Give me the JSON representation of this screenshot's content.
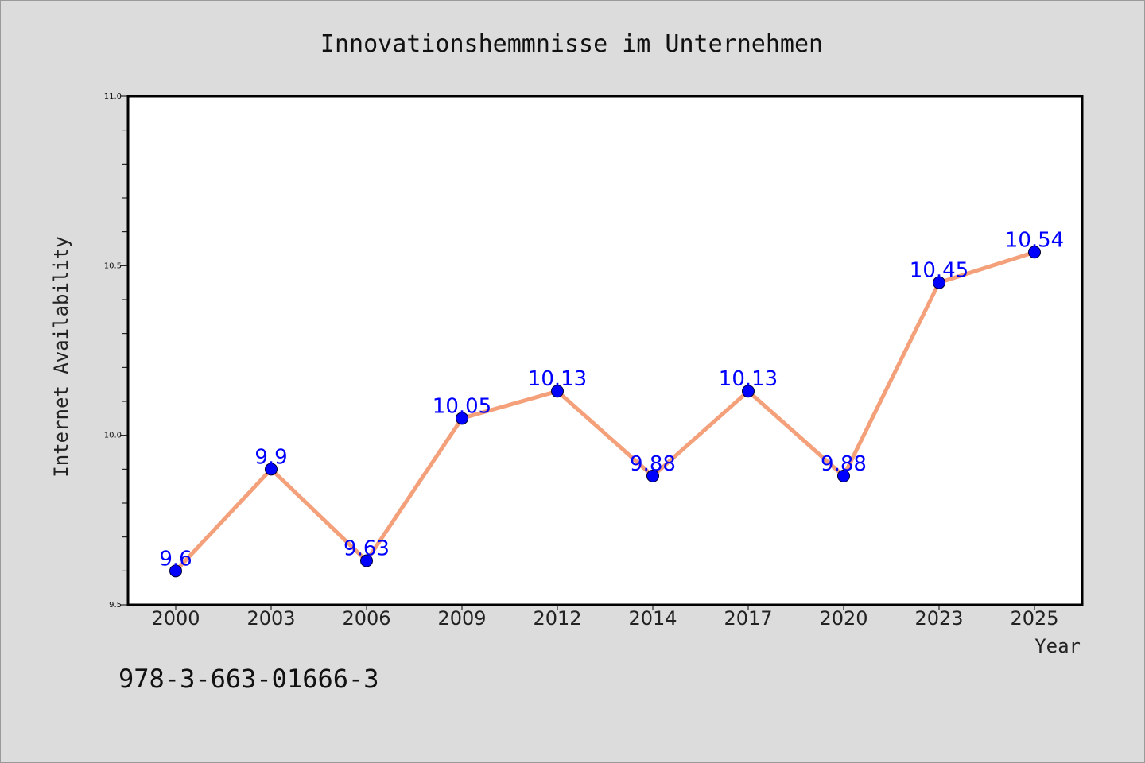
{
  "figure": {
    "background": "#dcdcdc",
    "isbn_text": "978-3-663-01666-3"
  },
  "chart_data": {
    "type": "line",
    "title": "Innovationshemmnisse im Unternehmen",
    "xlabel": "Year",
    "ylabel": "Internet Availability",
    "categories": [
      "2000",
      "2003",
      "2006",
      "2009",
      "2012",
      "2014",
      "2017",
      "2020",
      "2023",
      "2025"
    ],
    "series": [
      {
        "values": [
          9.6,
          9.9,
          9.63,
          10.05,
          10.13,
          9.88,
          10.13,
          9.88,
          10.45,
          10.54
        ],
        "data_labels": [
          "9.6",
          "9.9",
          "9.63",
          "10.05",
          "10.13",
          "9.88",
          "10.13",
          "9.88",
          "10.45",
          "10.54"
        ],
        "line_color": "#f4a07a",
        "marker_color": "#0000ff"
      }
    ],
    "ylim": [
      9.5,
      11.0
    ],
    "yticks": [
      "9.5",
      "10.0",
      "10.5",
      "11.0"
    ],
    "grid": false,
    "legend": "none"
  }
}
